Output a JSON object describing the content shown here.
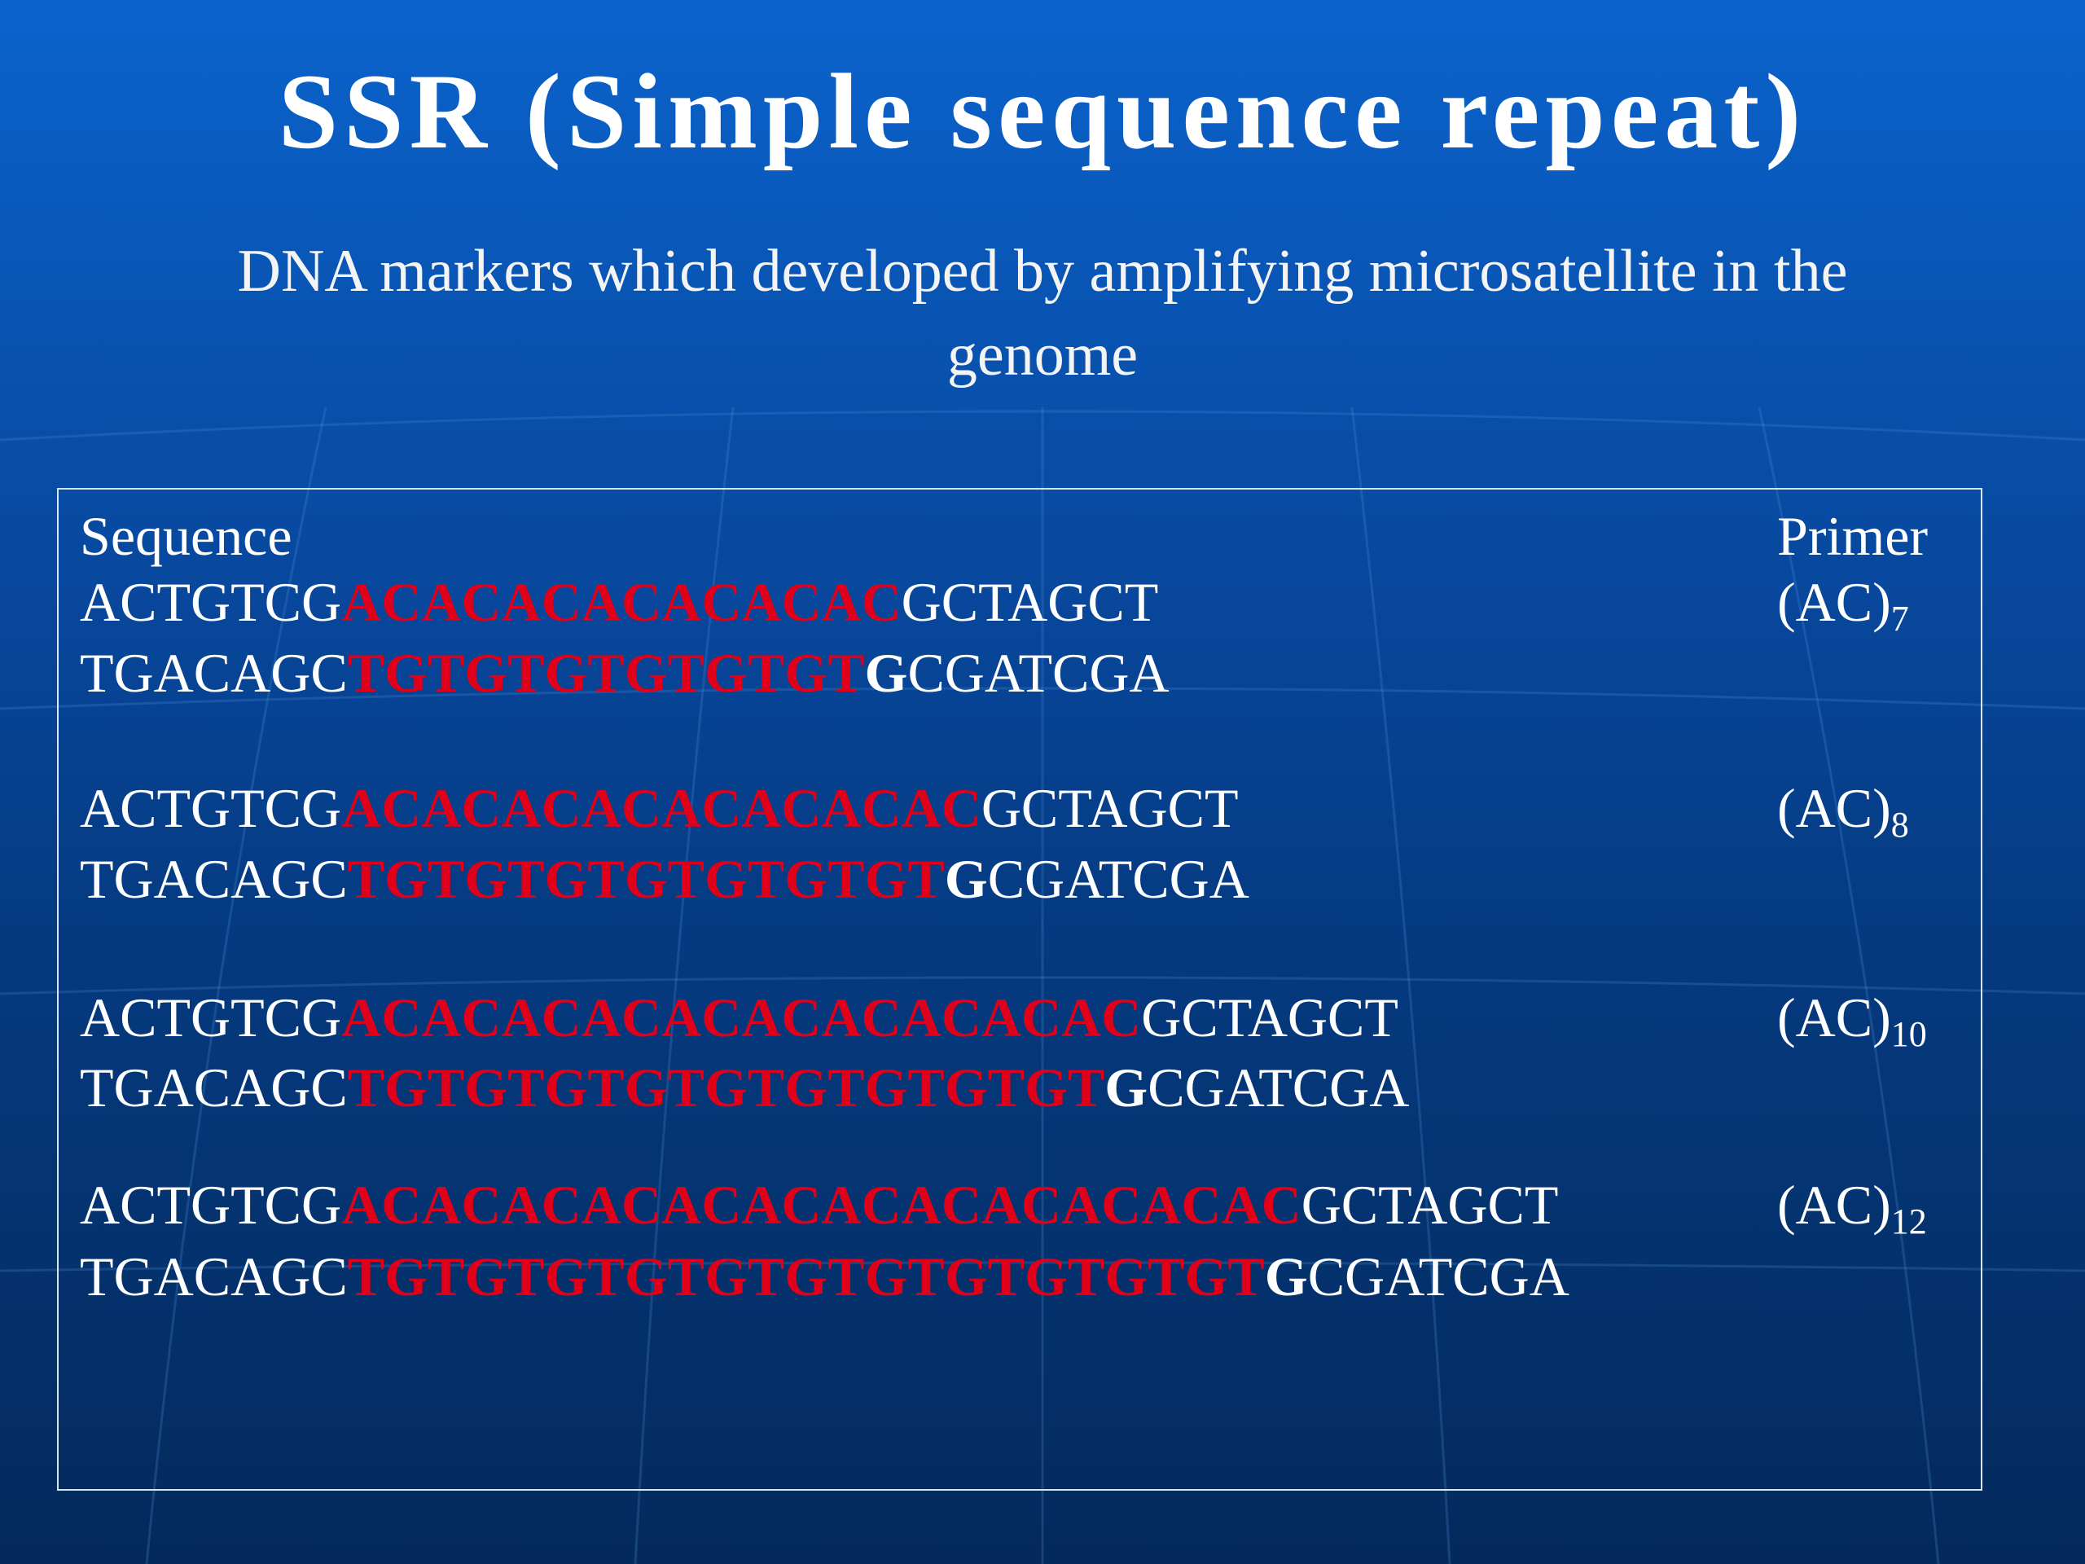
{
  "header": {
    "title": "SSR (Simple sequence repeat)",
    "subtitle": "DNA markers which developed by amplifying microsatellite in the genome"
  },
  "table": {
    "columns": [
      "Sequence",
      "Primer"
    ],
    "rows": [
      {
        "top": [
          "ACTGTCG",
          "ACACACACACACAC",
          "GCTAGCT"
        ],
        "bottom": [
          "TGACAGC",
          "TGTGTGTGTGTGT",
          "G",
          "CGATCGA"
        ],
        "primer": "(AC)",
        "repeats": "7"
      },
      {
        "top": [
          "ACTGTCG",
          "ACACACACACACACAC",
          "GCTAGCT"
        ],
        "bottom": [
          "TGACAGC",
          "TGTGTGTGTGTGTGT",
          "G",
          "CGATCGA"
        ],
        "primer": "(AC)",
        "repeats": "8"
      },
      {
        "top": [
          "ACTGTCG",
          "ACACACACACACACACACAC",
          "GCTAGCT"
        ],
        "bottom": [
          "TGACAGC",
          "TGTGTGTGTGTGTGTGTGT",
          "G",
          "CGATCGA"
        ],
        "primer": "(AC)",
        "repeats": "10"
      },
      {
        "top": [
          "ACTGTCG",
          "ACACACACACACACACACACACAC",
          "GCTAGCT"
        ],
        "bottom": [
          "TGACAGC",
          "TGTGTGTGTGTGTGTGTGTGTGT",
          "G",
          "CGATCGA"
        ],
        "primer": "(AC)",
        "repeats": "12"
      }
    ]
  }
}
